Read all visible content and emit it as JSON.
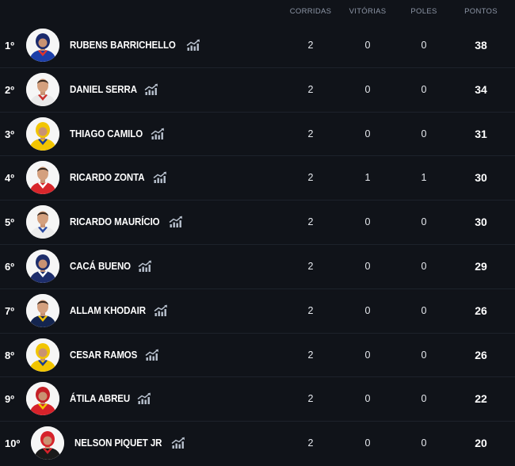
{
  "header": {
    "corridas": "CORRIDAS",
    "vitorias": "VITÓRIAS",
    "poles": "POLES",
    "pontos": "PONTOS"
  },
  "colors": {
    "background": "#101319",
    "header_text": "#8d96a6",
    "row_divider": "#1d222b",
    "trend_icon": "#b9c2cf"
  },
  "rows": [
    {
      "position": "1º",
      "name": "RUBENS BARRICHELLO",
      "corridas": "2",
      "vitorias": "0",
      "poles": "0",
      "pontos": "38",
      "avatar": {
        "suit": "#1d3fa8",
        "accent": "#e0342a",
        "helmet": "#1a2a6c"
      }
    },
    {
      "position": "2º",
      "name": "DANIEL SERRA",
      "corridas": "2",
      "vitorias": "0",
      "poles": "0",
      "pontos": "34",
      "avatar": {
        "suit": "#e9e9e9",
        "accent": "#c9302c",
        "helmet": null
      }
    },
    {
      "position": "3º",
      "name": "THIAGO CAMILO",
      "corridas": "2",
      "vitorias": "0",
      "poles": "0",
      "pontos": "31",
      "avatar": {
        "suit": "#f2c500",
        "accent": "#1b3d8f",
        "helmet": "#f2c500"
      }
    },
    {
      "position": "4º",
      "name": "RICARDO ZONTA",
      "corridas": "2",
      "vitorias": "1",
      "poles": "1",
      "pontos": "30",
      "avatar": {
        "suit": "#d8262b",
        "accent": "#ffffff",
        "helmet": null
      }
    },
    {
      "position": "5º",
      "name": "RICARDO MAURÍCIO",
      "corridas": "2",
      "vitorias": "0",
      "poles": "0",
      "pontos": "30",
      "avatar": {
        "suit": "#ececec",
        "accent": "#2b4aa0",
        "helmet": null
      }
    },
    {
      "position": "6º",
      "name": "CACÁ BUENO",
      "corridas": "2",
      "vitorias": "0",
      "poles": "0",
      "pontos": "29",
      "avatar": {
        "suit": "#1d2d6b",
        "accent": "#ffffff",
        "helmet": "#1d2d6b"
      }
    },
    {
      "position": "7º",
      "name": "ALLAM KHODAIR",
      "corridas": "2",
      "vitorias": "0",
      "poles": "0",
      "pontos": "26",
      "avatar": {
        "suit": "#14254f",
        "accent": "#f2c200",
        "helmet": null
      }
    },
    {
      "position": "8º",
      "name": "CESAR RAMOS",
      "corridas": "2",
      "vitorias": "0",
      "poles": "0",
      "pontos": "26",
      "avatar": {
        "suit": "#f2c500",
        "accent": "#1b3d8f",
        "helmet": "#f2c500"
      }
    },
    {
      "position": "9º",
      "name": "ÁTILA ABREU",
      "corridas": "2",
      "vitorias": "0",
      "poles": "0",
      "pontos": "22",
      "avatar": {
        "suit": "#d6222a",
        "accent": "#f2c500",
        "helmet": "#c51f26"
      }
    },
    {
      "position": "10º",
      "name": "NELSON PIQUET JR",
      "corridas": "2",
      "vitorias": "0",
      "poles": "0",
      "pontos": "20",
      "avatar": {
        "suit": "#1a1a1a",
        "accent": "#d6222a",
        "helmet": "#d6222a"
      }
    }
  ]
}
